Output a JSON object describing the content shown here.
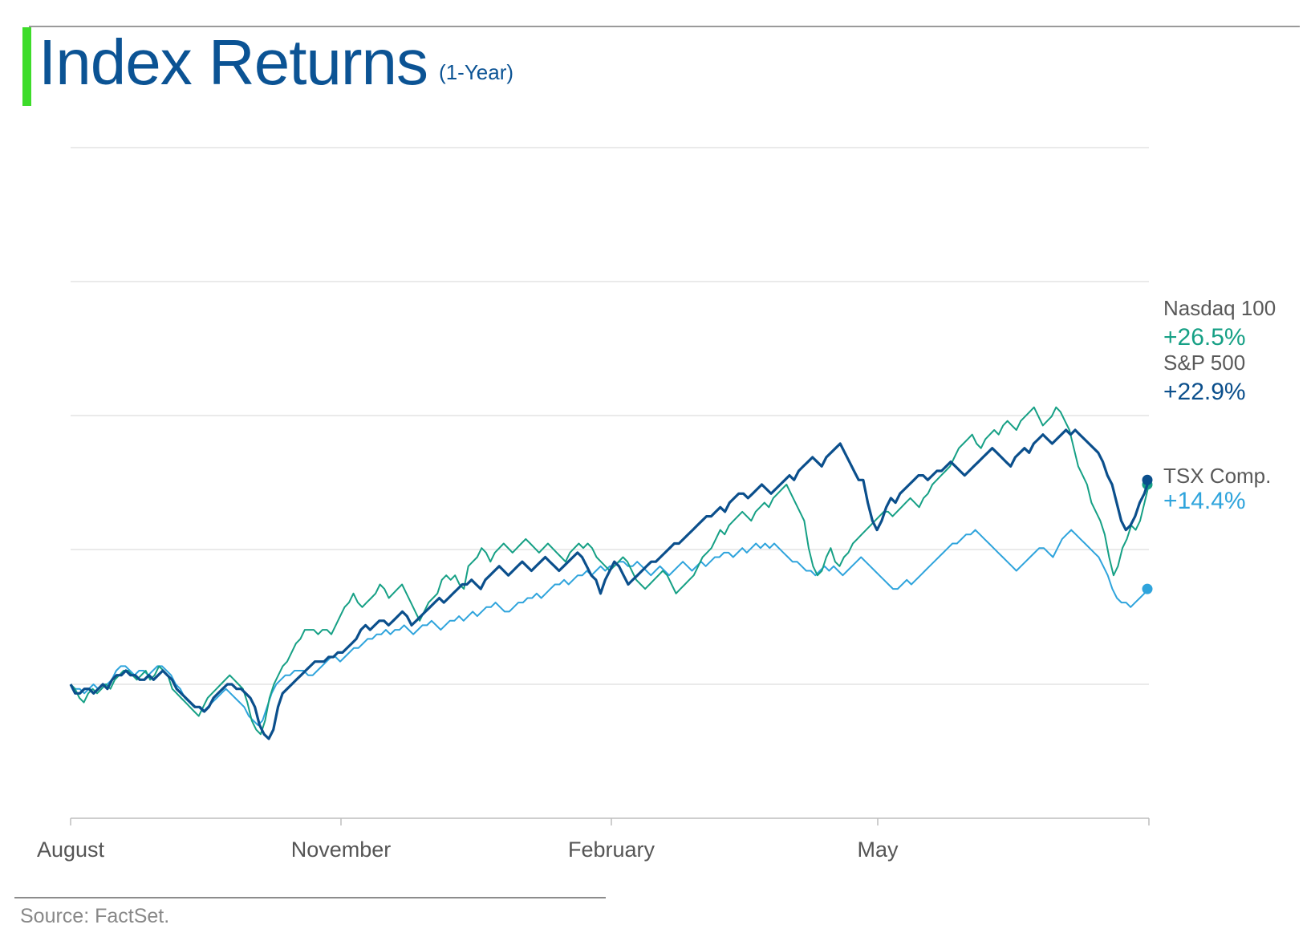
{
  "title": "Index Returns",
  "subtitle": "(1-Year)",
  "source": "Source: FactSet.",
  "colors": {
    "accent": "#3ddc2a",
    "title": "#0b5394",
    "grid": "#d6d6d6",
    "axis": "#bdbdbd",
    "tick_text": "#555555",
    "label_text": "#595959",
    "source_text": "#888888"
  },
  "chart_data": {
    "type": "line",
    "x_ticks": [
      "August",
      "November",
      "February",
      "May"
    ],
    "grid": true,
    "legend": "right-end labels",
    "series": [
      {
        "name": "Nasdaq 100",
        "change": "+26.5%",
        "color": "#16a085",
        "values": [
          0,
          -1,
          -3,
          -4,
          -2,
          -1,
          -2,
          -1,
          0,
          -1,
          1,
          2,
          3,
          3,
          2,
          1,
          2,
          3,
          1,
          2,
          4,
          3,
          2,
          -1,
          -2,
          -3,
          -4,
          -5,
          -6,
          -7,
          -5,
          -3,
          -2,
          -1,
          0,
          1,
          2,
          1,
          0,
          -1,
          -4,
          -8,
          -10,
          -11,
          -8,
          -3,
          0,
          2,
          4,
          5,
          7,
          9,
          10,
          12,
          12,
          12,
          11,
          12,
          12,
          11,
          13,
          15,
          17,
          18,
          20,
          18,
          17,
          18,
          19,
          20,
          22,
          21,
          19,
          20,
          21,
          22,
          20,
          18,
          16,
          14,
          16,
          18,
          19,
          20,
          23,
          24,
          23,
          24,
          22,
          21,
          26,
          27,
          28,
          30,
          29,
          27,
          29,
          30,
          31,
          30,
          29,
          30,
          31,
          32,
          31,
          30,
          29,
          30,
          31,
          30,
          29,
          28,
          27,
          29,
          30,
          31,
          30,
          31,
          30,
          28,
          27,
          26,
          25,
          26,
          27,
          28,
          27,
          25,
          23,
          22,
          21,
          22,
          23,
          24,
          25,
          24,
          22,
          20,
          21,
          22,
          23,
          24,
          26,
          28,
          29,
          30,
          32,
          34,
          33,
          35,
          36,
          37,
          38,
          37,
          36,
          38,
          39,
          40,
          39,
          41,
          42,
          43,
          44,
          42,
          40,
          38,
          36,
          30,
          26,
          24,
          25,
          28,
          30,
          27,
          26,
          28,
          29,
          31,
          32,
          33,
          34,
          35,
          36,
          37,
          38,
          38,
          37,
          38,
          39,
          40,
          41,
          40,
          39,
          41,
          42,
          44,
          45,
          46,
          47,
          48,
          50,
          52,
          53,
          54,
          55,
          53,
          52,
          54,
          55,
          56,
          55,
          57,
          58,
          57,
          56,
          58,
          59,
          60,
          61,
          59,
          57,
          58,
          59,
          61,
          60,
          58,
          56,
          52,
          48,
          46,
          44,
          40,
          38,
          36,
          33,
          28,
          24,
          26,
          30,
          32,
          35,
          34,
          36,
          40,
          44
        ]
      },
      {
        "name": "S&P 500",
        "change": "+22.9%",
        "color": "#0b4f8c",
        "values": [
          0,
          -2,
          -2,
          -1,
          -1,
          -2,
          -1,
          0,
          -1,
          1,
          2,
          2,
          3,
          2,
          2,
          1,
          1,
          2,
          1,
          2,
          3,
          2,
          1,
          -1,
          -2,
          -3,
          -4,
          -5,
          -5,
          -6,
          -5,
          -3,
          -2,
          -1,
          0,
          0,
          -1,
          -1,
          -2,
          -3,
          -5,
          -9,
          -11,
          -12,
          -10,
          -5,
          -2,
          -1,
          0,
          1,
          2,
          3,
          4,
          5,
          5,
          5,
          6,
          6,
          7,
          7,
          8,
          9,
          10,
          12,
          13,
          12,
          13,
          14,
          14,
          13,
          14,
          15,
          16,
          15,
          13,
          14,
          15,
          16,
          17,
          18,
          19,
          18,
          19,
          20,
          21,
          22,
          22,
          23,
          22,
          21,
          23,
          24,
          25,
          26,
          25,
          24,
          25,
          26,
          27,
          26,
          25,
          26,
          27,
          28,
          27,
          26,
          25,
          26,
          27,
          28,
          29,
          28,
          26,
          24,
          23,
          20,
          23,
          25,
          27,
          26,
          24,
          22,
          23,
          24,
          25,
          26,
          27,
          27,
          28,
          29,
          30,
          31,
          31,
          32,
          33,
          34,
          35,
          36,
          37,
          37,
          38,
          39,
          38,
          40,
          41,
          42,
          42,
          41,
          42,
          43,
          44,
          43,
          42,
          43,
          44,
          45,
          46,
          45,
          47,
          48,
          49,
          50,
          49,
          48,
          50,
          51,
          52,
          53,
          51,
          49,
          47,
          45,
          45,
          40,
          36,
          34,
          36,
          39,
          41,
          40,
          42,
          43,
          44,
          45,
          46,
          46,
          45,
          46,
          47,
          47,
          48,
          49,
          48,
          47,
          46,
          47,
          48,
          49,
          50,
          51,
          52,
          51,
          50,
          49,
          48,
          50,
          51,
          52,
          51,
          53,
          54,
          55,
          54,
          53,
          54,
          55,
          56,
          55,
          56,
          55,
          54,
          53,
          52,
          51,
          49,
          46,
          44,
          40,
          36,
          34,
          35,
          37,
          40,
          42,
          45
        ]
      },
      {
        "name": "TSX Comp.",
        "change": "+14.4%",
        "color": "#2fa4dc",
        "values": [
          0,
          -1,
          -1,
          -2,
          -1,
          0,
          -1,
          0,
          0,
          1,
          3,
          4,
          4,
          3,
          2,
          3,
          3,
          2,
          3,
          4,
          4,
          3,
          2,
          0,
          -1,
          -3,
          -4,
          -5,
          -5,
          -6,
          -5,
          -4,
          -3,
          -2,
          -1,
          -2,
          -3,
          -4,
          -5,
          -7,
          -8,
          -9,
          -8,
          -5,
          -2,
          0,
          1,
          2,
          2,
          3,
          3,
          3,
          2,
          2,
          3,
          4,
          5,
          6,
          6,
          5,
          6,
          7,
          8,
          8,
          9,
          10,
          10,
          11,
          11,
          12,
          11,
          12,
          12,
          13,
          12,
          11,
          12,
          13,
          13,
          14,
          13,
          12,
          13,
          14,
          14,
          15,
          14,
          15,
          16,
          15,
          16,
          17,
          17,
          18,
          17,
          16,
          16,
          17,
          18,
          18,
          19,
          19,
          20,
          19,
          20,
          21,
          22,
          22,
          23,
          22,
          23,
          24,
          24,
          25,
          24,
          25,
          26,
          25,
          26,
          26,
          27,
          27,
          26,
          26,
          27,
          26,
          25,
          24,
          25,
          26,
          25,
          24,
          25,
          26,
          27,
          26,
          25,
          26,
          27,
          26,
          27,
          28,
          28,
          29,
          29,
          28,
          29,
          30,
          29,
          30,
          31,
          30,
          31,
          30,
          31,
          30,
          29,
          28,
          27,
          27,
          26,
          25,
          25,
          24,
          25,
          26,
          25,
          26,
          25,
          24,
          25,
          26,
          27,
          28,
          27,
          26,
          25,
          24,
          23,
          22,
          21,
          21,
          22,
          23,
          22,
          23,
          24,
          25,
          26,
          27,
          28,
          29,
          30,
          31,
          31,
          32,
          33,
          33,
          34,
          33,
          32,
          31,
          30,
          29,
          28,
          27,
          26,
          25,
          26,
          27,
          28,
          29,
          30,
          30,
          29,
          28,
          30,
          32,
          33,
          34,
          33,
          32,
          31,
          30,
          29,
          28,
          26,
          24,
          21,
          19,
          18,
          18,
          17,
          18,
          19,
          20,
          21
        ]
      }
    ]
  }
}
